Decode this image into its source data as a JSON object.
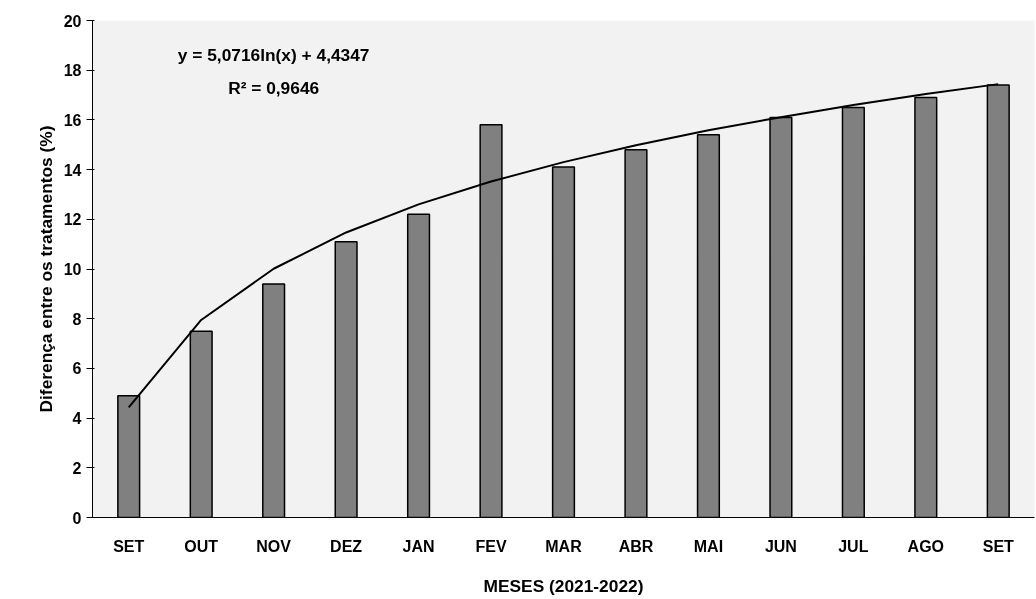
{
  "chart_data": {
    "type": "bar",
    "xlabel": "MESES (2021-2022)",
    "ylabel": "Diferença entre os tratamentos (%)",
    "categories": [
      "SET",
      "OUT",
      "NOV",
      "DEZ",
      "JAN",
      "FEV",
      "MAR",
      "ABR",
      "MAI",
      "JUN",
      "JUL",
      "AGO",
      "SET"
    ],
    "series": [
      {
        "color": "#808080",
        "values": [
          4.9,
          7.5,
          9.4,
          11.1,
          12.2,
          15.8,
          14.1,
          14.8,
          15.4,
          16.1,
          16.5,
          16.9,
          17.4
        ]
      },
      {
        "type": "line",
        "color": "#000000",
        "values": [
          4.43,
          7.95,
          10.01,
          11.47,
          12.6,
          13.52,
          14.3,
          14.98,
          15.58,
          16.11,
          16.6,
          17.04,
          17.44
        ]
      }
    ],
    "annotations": [
      "y = 5,0716ln(x) + 4,4347",
      "R² = 0,9646"
    ],
    "ylim": [
      0,
      20
    ],
    "yticks": [
      0,
      2,
      4,
      6,
      8,
      10,
      12,
      14,
      16,
      18,
      20
    ],
    "grid": false
  }
}
